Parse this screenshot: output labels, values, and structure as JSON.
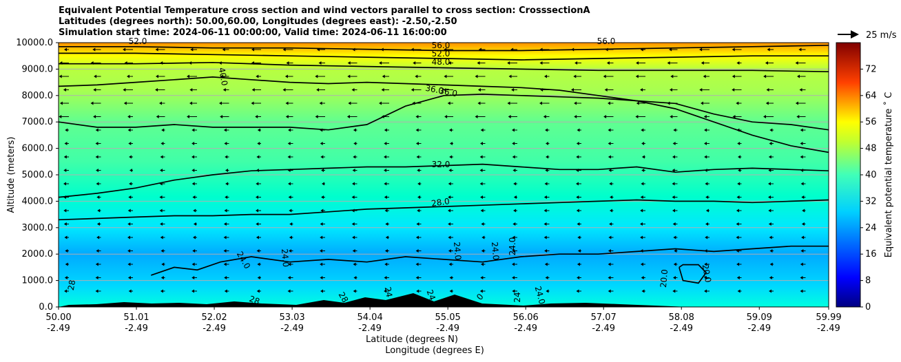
{
  "chart_data": {
    "type": "contourf",
    "title_lines": [
      "Equivalent Potential Temperature cross section and wind vectors parallel to cross section: CrosssectionA",
      "Latitudes (degrees north): 50.00,60.00, Longitudes (degrees east): -2.50,-2.50",
      "Simulation start time: 2024-06-11 00:00:00, Valid time: 2024-06-11 16:00:00"
    ],
    "xlabel": "Latitude (degrees N)",
    "xlabel2": "Longitude (degrees E)",
    "ylabel": "Altitude (meters)",
    "xlim": [
      50.0,
      59.99
    ],
    "ylim": [
      0,
      10000
    ],
    "x_ticks": [
      {
        "lat": "50.00",
        "lon": "-2.49",
        "v": 50.0
      },
      {
        "lat": "51.01",
        "lon": "-2.49",
        "v": 51.01
      },
      {
        "lat": "52.02",
        "lon": "-2.49",
        "v": 52.02
      },
      {
        "lat": "53.03",
        "lon": "-2.49",
        "v": 53.03
      },
      {
        "lat": "54.04",
        "lon": "-2.49",
        "v": 54.04
      },
      {
        "lat": "55.05",
        "lon": "-2.49",
        "v": 55.05
      },
      {
        "lat": "56.06",
        "lon": "-2.49",
        "v": 56.06
      },
      {
        "lat": "57.07",
        "lon": "-2.49",
        "v": 57.07
      },
      {
        "lat": "58.08",
        "lon": "-2.49",
        "v": 58.08
      },
      {
        "lat": "59.09",
        "lon": "-2.49",
        "v": 59.09
      },
      {
        "lat": "59.99",
        "lon": "-2.49",
        "v": 59.99
      }
    ],
    "y_ticks": [
      {
        "label": "0.0",
        "v": 0
      },
      {
        "label": "1000.0",
        "v": 1000
      },
      {
        "label": "2000.0",
        "v": 2000
      },
      {
        "label": "3000.0",
        "v": 3000
      },
      {
        "label": "4000.0",
        "v": 4000
      },
      {
        "label": "5000.0",
        "v": 5000
      },
      {
        "label": "6000.0",
        "v": 6000
      },
      {
        "label": "7000.0",
        "v": 7000
      },
      {
        "label": "8000.0",
        "v": 8000
      },
      {
        "label": "9000.0",
        "v": 9000
      },
      {
        "label": "10000.0",
        "v": 10000
      }
    ],
    "grid": "horizontal",
    "colorbar": {
      "label": "Equivalent potential temperature ˚ C",
      "range": [
        0,
        80
      ],
      "ticks": [
        "0",
        "8",
        "16",
        "24",
        "32",
        "40",
        "48",
        "56",
        "64",
        "72"
      ],
      "colormap": "jet"
    },
    "quiver_key": {
      "label": "25 m/s"
    },
    "contours": [
      {
        "label": "24.0",
        "level": 24,
        "x": [
          51.2,
          51.5,
          51.8,
          52.1,
          52.5,
          53.0,
          53.5,
          54.0,
          54.5,
          55.0,
          55.5,
          56.0,
          56.5,
          57.0,
          57.5,
          58.0,
          58.5,
          59.0,
          59.5,
          59.99
        ],
        "y": [
          1200,
          1500,
          1400,
          1700,
          1900,
          1700,
          1800,
          1700,
          1900,
          1800,
          1700,
          1900,
          2000,
          2000,
          2100,
          2200,
          2100,
          2200,
          2300,
          2300
        ]
      },
      {
        "label": "28.0",
        "level": 28,
        "x": [
          50.0,
          50.5,
          51.0,
          51.5,
          52.0,
          52.5,
          53.0,
          53.5,
          54.0,
          54.5,
          55.0,
          55.5,
          56.0,
          56.5,
          57.0,
          57.5,
          58.0,
          58.5,
          59.0,
          59.5,
          59.99
        ],
        "y": [
          3300,
          3350,
          3400,
          3450,
          3450,
          3500,
          3500,
          3600,
          3700,
          3750,
          3800,
          3850,
          3900,
          3950,
          4000,
          4050,
          4000,
          4000,
          3950,
          4000,
          4050
        ]
      },
      {
        "label": "32.0",
        "level": 32,
        "x": [
          50.0,
          50.5,
          51.0,
          51.5,
          52.0,
          52.5,
          53.0,
          53.5,
          54.0,
          54.5,
          55.0,
          55.5,
          56.0,
          56.5,
          57.0,
          57.5,
          58.0,
          58.5,
          59.0,
          59.5,
          59.99
        ],
        "y": [
          4150,
          4300,
          4500,
          4800,
          5000,
          5150,
          5200,
          5250,
          5300,
          5300,
          5350,
          5400,
          5300,
          5200,
          5200,
          5300,
          5100,
          5200,
          5250,
          5200,
          5150
        ]
      },
      {
        "label": "36.0",
        "level": 36,
        "x": [
          50.0,
          50.5,
          51.0,
          51.5,
          52.0,
          52.5,
          53.0,
          53.5,
          54.0,
          54.5,
          55.0,
          55.5,
          56.0,
          56.5,
          57.0,
          57.5,
          58.0,
          58.5,
          59.0,
          59.5,
          59.99
        ],
        "y": [
          7000,
          6800,
          6800,
          6900,
          6800,
          6800,
          6800,
          6700,
          6900,
          7600,
          8000,
          8050,
          8000,
          7950,
          7900,
          7800,
          7700,
          7300,
          7000,
          6900,
          6700
        ]
      },
      {
        "label": "40.0",
        "level": 40,
        "x": [
          50.0,
          50.5,
          51.0,
          51.5,
          52.0,
          52.5,
          53.0,
          53.5,
          54.0,
          54.5,
          55.0,
          55.5,
          56.0,
          56.5,
          57.0,
          57.5,
          58.0,
          58.5,
          59.0,
          59.5,
          59.99
        ],
        "y": [
          8350,
          8400,
          8500,
          8600,
          8700,
          8600,
          8500,
          8450,
          8500,
          8450,
          8400,
          8350,
          8300,
          8200,
          8000,
          7800,
          7500,
          7000,
          6500,
          6100,
          5850
        ]
      },
      {
        "label": "48.0",
        "level": 48,
        "x": [
          50.0,
          51.0,
          52.0,
          53.0,
          54.0,
          55.0,
          56.0,
          57.0,
          58.0,
          59.0,
          59.99
        ],
        "y": [
          9200,
          9200,
          9250,
          9150,
          9100,
          9050,
          9000,
          8950,
          8950,
          8950,
          8900
        ]
      },
      {
        "label": "52.0",
        "level": 52,
        "x": [
          50.0,
          51.0,
          52.0,
          53.0,
          54.0,
          55.0,
          56.0,
          57.0,
          58.0,
          59.0,
          59.99
        ],
        "y": [
          9600,
          9600,
          9550,
          9500,
          9450,
          9400,
          9350,
          9400,
          9450,
          9500,
          9500
        ]
      },
      {
        "label": "56.0",
        "level": 56,
        "x": [
          50.0,
          51.0,
          52.0,
          53.0,
          54.0,
          55.0,
          56.0,
          57.0,
          58.0,
          59.0,
          59.99
        ],
        "y": [
          9850,
          9850,
          9800,
          9800,
          9750,
          9700,
          9700,
          9750,
          9800,
          9850,
          9900
        ]
      },
      {
        "label": "20.0",
        "level": 20,
        "x": [
          58.05,
          58.1,
          58.3,
          58.4,
          58.3,
          58.1,
          58.05
        ],
        "y": [
          1500,
          1000,
          900,
          1300,
          1600,
          1600,
          1500
        ]
      }
    ],
    "contour_labels": [
      "52.0",
      "56.0",
      "56.0",
      "52.0",
      "48.0",
      "40.0",
      "36.0",
      "36.0",
      "32.0",
      "28.0",
      "24.0",
      "24.0",
      "24.0",
      "24.0",
      "24.0",
      "24.0",
      "20.0",
      "20.0",
      "28",
      "28",
      "28",
      "24",
      "24",
      "24",
      "0"
    ]
  }
}
